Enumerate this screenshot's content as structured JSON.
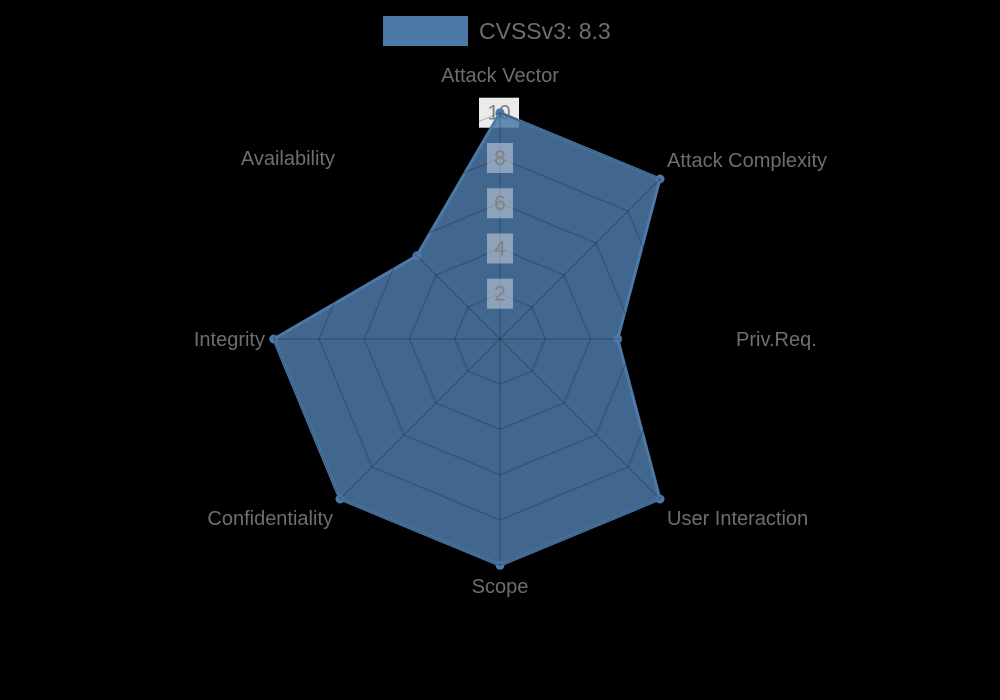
{
  "chart_data": {
    "type": "radar",
    "legend_label": "CVSSv3: 8.3",
    "categories": [
      "Attack Vector",
      "Attack Complexity",
      "Priv.Req.",
      "User Interaction",
      "Scope",
      "Confidentiality",
      "Integrity",
      "Availability"
    ],
    "values": [
      10,
      10,
      5.2,
      10,
      10,
      10,
      10,
      5.2
    ],
    "radial_ticks": [
      2,
      4,
      6,
      8,
      10
    ],
    "rlim": [
      0,
      10
    ],
    "grid": true,
    "legend_position": "top-center",
    "series_color": "#4d79a8",
    "background_color": "#000000",
    "axis_label_color": "#6e6e6e",
    "tick_label_color": "#808080"
  }
}
